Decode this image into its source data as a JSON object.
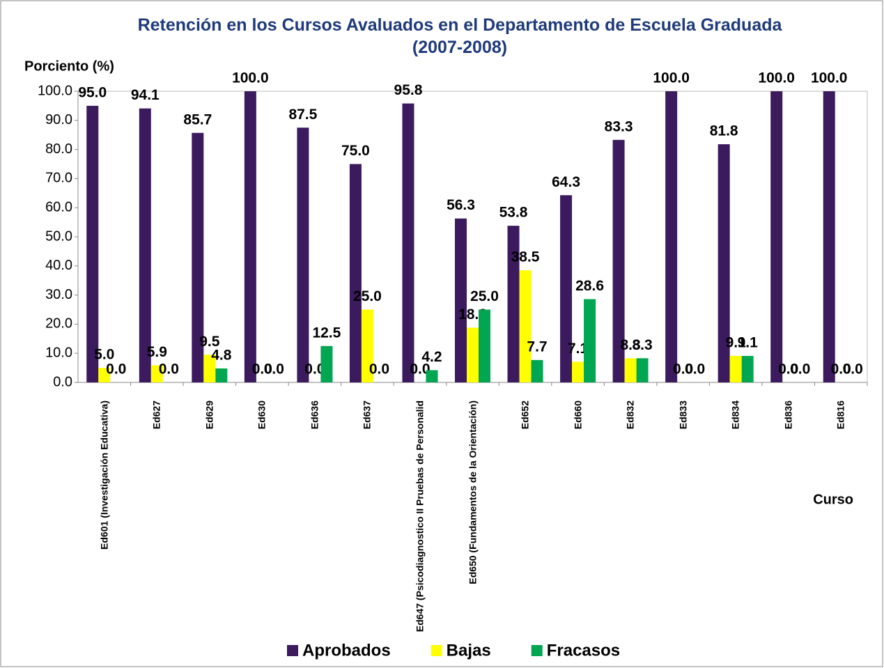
{
  "chart_data": {
    "type": "bar",
    "title": "Retención en los Cursos Avaluados en el Departamento de Escuela Graduada (2007-2008)",
    "y_label": "Porciento (%)",
    "x_label": "Curso",
    "categories": [
      "Ed601 (Investigación Educativa)",
      "Ed627",
      "Ed629",
      "Ed630",
      "Ed636",
      "Ed637",
      "Ed647 (Psicodiagnostico II Pruebas de Personalid",
      "Ed650 (Fundamentos de la Orientación)",
      "Ed652",
      "Ed660",
      "Ed832",
      "Ed833",
      "Ed834",
      "Ed836",
      "Ed816"
    ],
    "series": [
      {
        "name": "Aprobados",
        "color": "#3b1a5e",
        "values": [
          95.0,
          94.1,
          85.7,
          100,
          87.5,
          75.0,
          95.8,
          56.3,
          53.8,
          64.3,
          83.3,
          100,
          81.8,
          100,
          100
        ],
        "value_labels": [
          "95.0",
          "94.1",
          "85.7",
          "100.0",
          "87.5",
          "75.0",
          "95.8",
          "56.3",
          "53.8",
          "64.3",
          "83.3",
          "100.0",
          "81.8",
          "100.0",
          "100.0"
        ]
      },
      {
        "name": "Bajas",
        "color": "#ffff00",
        "values": [
          5.0,
          5.9,
          9.5,
          0,
          0,
          25.0,
          0,
          18.8,
          38.5,
          7.1,
          8.3,
          0,
          9.1,
          0,
          0
        ],
        "value_labels": [
          "5.0",
          "5.9",
          "9.5",
          "0.0",
          "0.0",
          "25.0",
          "0.0",
          "18.8",
          "38.5",
          "7.1",
          "8.3",
          "0.0",
          "9.1",
          "0.0",
          "0.0"
        ]
      },
      {
        "name": "Fracasos",
        "color": "#00a651",
        "values": [
          0,
          0,
          4.8,
          0,
          12.5,
          0,
          4.2,
          25.0,
          7.7,
          28.6,
          8.3,
          0,
          9.1,
          0,
          0
        ],
        "value_labels": [
          "0.0",
          "0.0",
          "4.8",
          "0.0",
          "12.5",
          "0.0",
          "4.2",
          "25.0",
          "7.7",
          "28.6",
          "8.3",
          "0.0",
          "9.1",
          "0.0",
          "0.0"
        ]
      }
    ],
    "ylim": [
      0,
      100
    ],
    "yticks": [
      {
        "value": 0,
        "label": "0.0"
      },
      {
        "value": 10,
        "label": "10.0"
      },
      {
        "value": 20,
        "label": "20.0"
      },
      {
        "value": 30,
        "label": "30.0"
      },
      {
        "value": 40,
        "label": "40.0"
      },
      {
        "value": 50,
        "label": "50.0"
      },
      {
        "value": 60,
        "label": "60.0"
      },
      {
        "value": 70,
        "label": "70.0"
      },
      {
        "value": 80,
        "label": "80.0"
      },
      {
        "value": 90,
        "label": "90.0"
      },
      {
        "value": 100,
        "label": "100.0"
      }
    ],
    "grid": false,
    "legend": "bottom"
  }
}
